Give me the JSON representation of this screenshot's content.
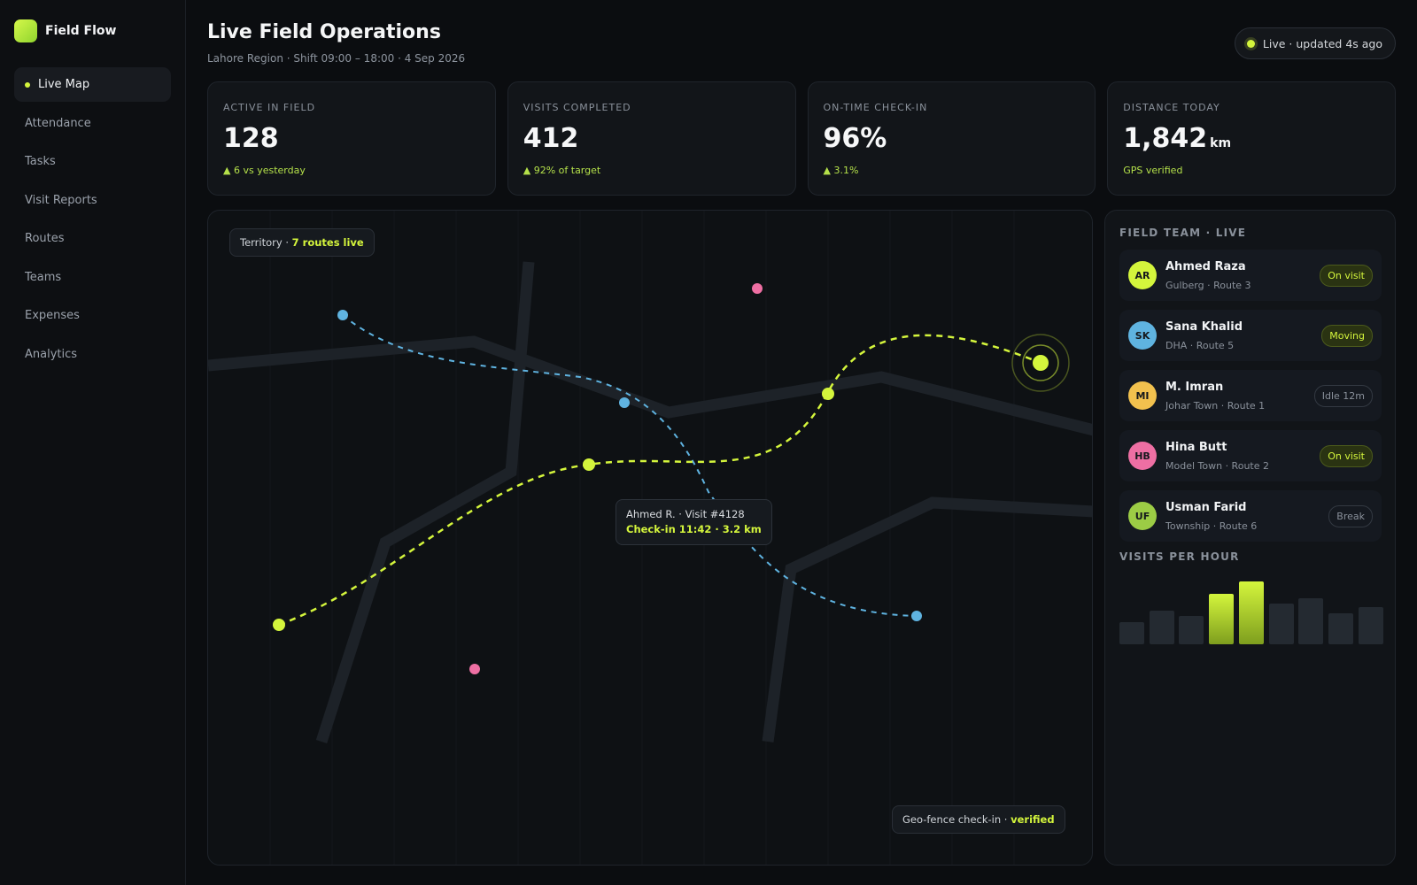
{
  "brand": {
    "name": "Field Flow"
  },
  "nav": [
    {
      "label": "Live Map",
      "active": true
    },
    {
      "label": "Attendance"
    },
    {
      "label": "Tasks"
    },
    {
      "label": "Visit Reports"
    },
    {
      "label": "Routes"
    },
    {
      "label": "Teams"
    },
    {
      "label": "Expenses"
    },
    {
      "label": "Analytics"
    }
  ],
  "header": {
    "title": "Live Field Operations",
    "subtitle": "Lahore Region · Shift 09:00 – 18:00 · 4 Sep 2026",
    "live_status": "Live · updated 4s ago"
  },
  "kpis": [
    {
      "label": "ACTIVE IN FIELD",
      "value": "128",
      "unit": "",
      "delta": "▲ 6 vs yesterday"
    },
    {
      "label": "VISITS COMPLETED",
      "value": "412",
      "unit": "",
      "delta": "▲ 92% of target"
    },
    {
      "label": "ON-TIME CHECK-IN",
      "value": "96%",
      "unit": "",
      "delta": "▲ 3.1%"
    },
    {
      "label": "DISTANCE TODAY",
      "value": "1,842",
      "unit": "km",
      "delta": "GPS verified"
    }
  ],
  "map": {
    "territory_prefix": "Territory · ",
    "territory_value": "7 routes live",
    "tooltip_line1": "Ahmed R. · Visit #4128",
    "tooltip_line2": "Check-in 11:42 · 3.2 km",
    "geofence_prefix": "Geo-fence check-in · ",
    "geofence_value": "verified"
  },
  "team": {
    "heading": "FIELD TEAM · LIVE",
    "members": [
      {
        "initials": "AR",
        "name": "Ahmed Raza",
        "sub": "Gulberg · Route 3",
        "status": "On visit",
        "avatar_color": "#d4f53c",
        "status_style": "on"
      },
      {
        "initials": "SK",
        "name": "Sana Khalid",
        "sub": "DHA · Route 5",
        "status": "Moving",
        "avatar_color": "#5fb3e0",
        "status_style": "on"
      },
      {
        "initials": "MI",
        "name": "M. Imran",
        "sub": "Johar Town · Route 1",
        "status": "Idle 12m",
        "avatar_color": "#f2c14e",
        "status_style": "idle"
      },
      {
        "initials": "HB",
        "name": "Hina Butt",
        "sub": "Model Town · Route 2",
        "status": "On visit",
        "avatar_color": "#ee6fa3",
        "status_style": "on"
      },
      {
        "initials": "UF",
        "name": "Usman Farid",
        "sub": "Township · Route 6",
        "status": "Break",
        "avatar_color": "#9ccc45",
        "status_style": "idle"
      }
    ]
  },
  "visits_per_hour": {
    "heading": "VISITS PER HOUR",
    "values": [
      25,
      38,
      32,
      57,
      71,
      46,
      52,
      35,
      42
    ],
    "highlight": [
      false,
      false,
      false,
      true,
      true,
      false,
      false,
      false,
      false
    ]
  },
  "colors": {
    "accent": "#d4f53c",
    "route_blue": "#5fb3e0",
    "pin_pink": "#ee6fa3"
  }
}
